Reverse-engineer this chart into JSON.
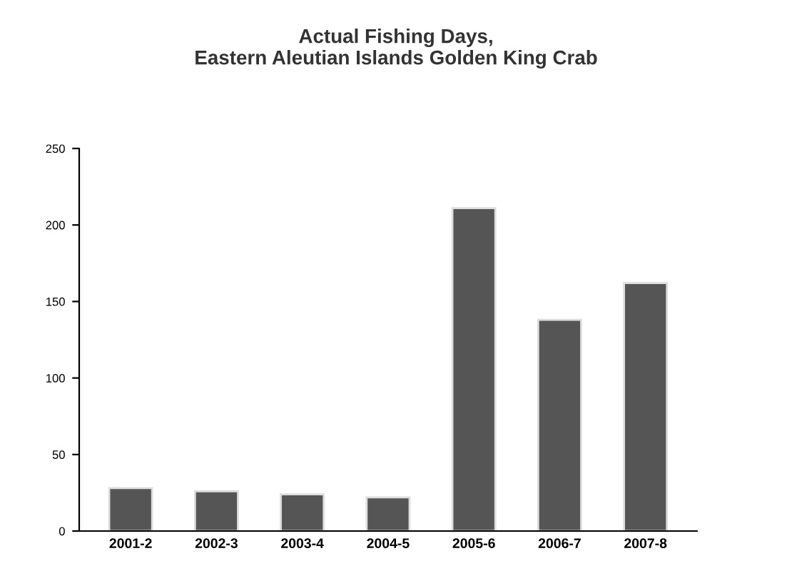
{
  "chart_data": {
    "type": "bar",
    "title": "Actual Fishing Days,\nEastern Aleutian Islands Golden King Crab",
    "categories": [
      "2001-2",
      "2002-3",
      "2003-4",
      "2004-5",
      "2005-6",
      "2006-7",
      "2007-8"
    ],
    "values": [
      28,
      26,
      24,
      22,
      211,
      138,
      162
    ],
    "color": "#555555",
    "ylim": [
      0,
      250
    ],
    "yticks": [
      0,
      50,
      100,
      150,
      200,
      250
    ],
    "grid": false,
    "legend": false
  }
}
